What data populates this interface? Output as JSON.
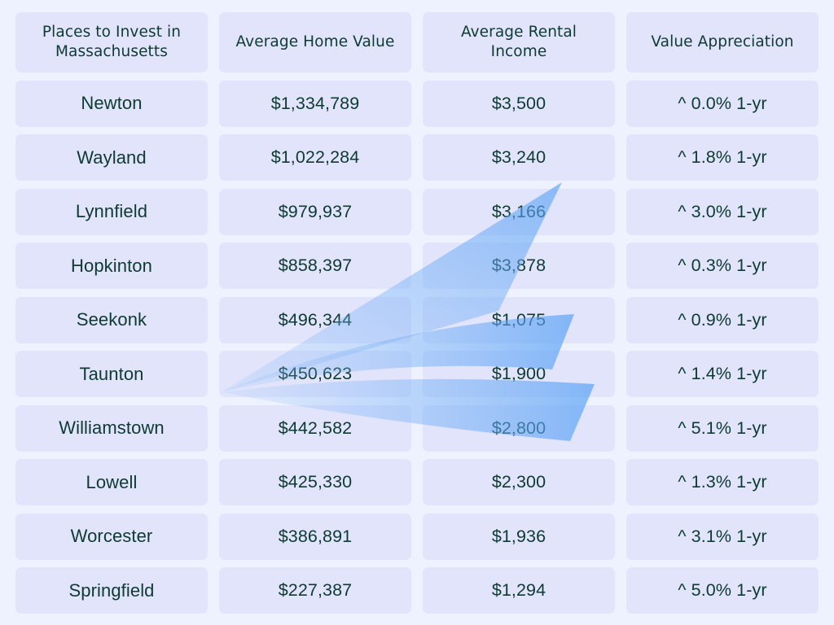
{
  "table": {
    "headers": [
      "Places to Invest in Massachusetts",
      "Average Home Value",
      "Average Rental Income",
      "Value Appreciation"
    ],
    "rows": [
      {
        "place": "Newton",
        "home_value": "$1,334,789",
        "rental_income": "$3,500",
        "appreciation": "^ 0.0% 1-yr"
      },
      {
        "place": "Wayland",
        "home_value": "$1,022,284",
        "rental_income": "$3,240",
        "appreciation": "^ 1.8% 1-yr"
      },
      {
        "place": "Lynnfield",
        "home_value": "$979,937",
        "rental_income": "$3,166",
        "appreciation": "^ 3.0% 1-yr"
      },
      {
        "place": "Hopkinton",
        "home_value": "$858,397",
        "rental_income": "$3,878",
        "appreciation": "^ 0.3% 1-yr"
      },
      {
        "place": "Seekonk",
        "home_value": "$496,344",
        "rental_income": "$1,075",
        "appreciation": "^ 0.9% 1-yr"
      },
      {
        "place": "Taunton",
        "home_value": "$450,623",
        "rental_income": "$1,900",
        "appreciation": "^ 1.4% 1-yr"
      },
      {
        "place": "Williamstown",
        "home_value": "$442,582",
        "rental_income": "$2,800",
        "appreciation": "^ 5.1% 1-yr"
      },
      {
        "place": "Lowell",
        "home_value": "$425,330",
        "rental_income": "$2,300",
        "appreciation": "^ 1.3% 1-yr"
      },
      {
        "place": "Worcester",
        "home_value": "$386,891",
        "rental_income": "$1,936",
        "appreciation": "^ 3.1% 1-yr"
      },
      {
        "place": "Springfield",
        "home_value": "$227,387",
        "rental_income": "$1,294",
        "appreciation": "^ 5.0% 1-yr"
      }
    ]
  },
  "colors": {
    "background": "#eef1fe",
    "cell": "#e1e4fb",
    "text": "#0e3b31",
    "logo": "#6aa8f5"
  },
  "watermark": {
    "icon": "paper-plane-logo-icon"
  }
}
